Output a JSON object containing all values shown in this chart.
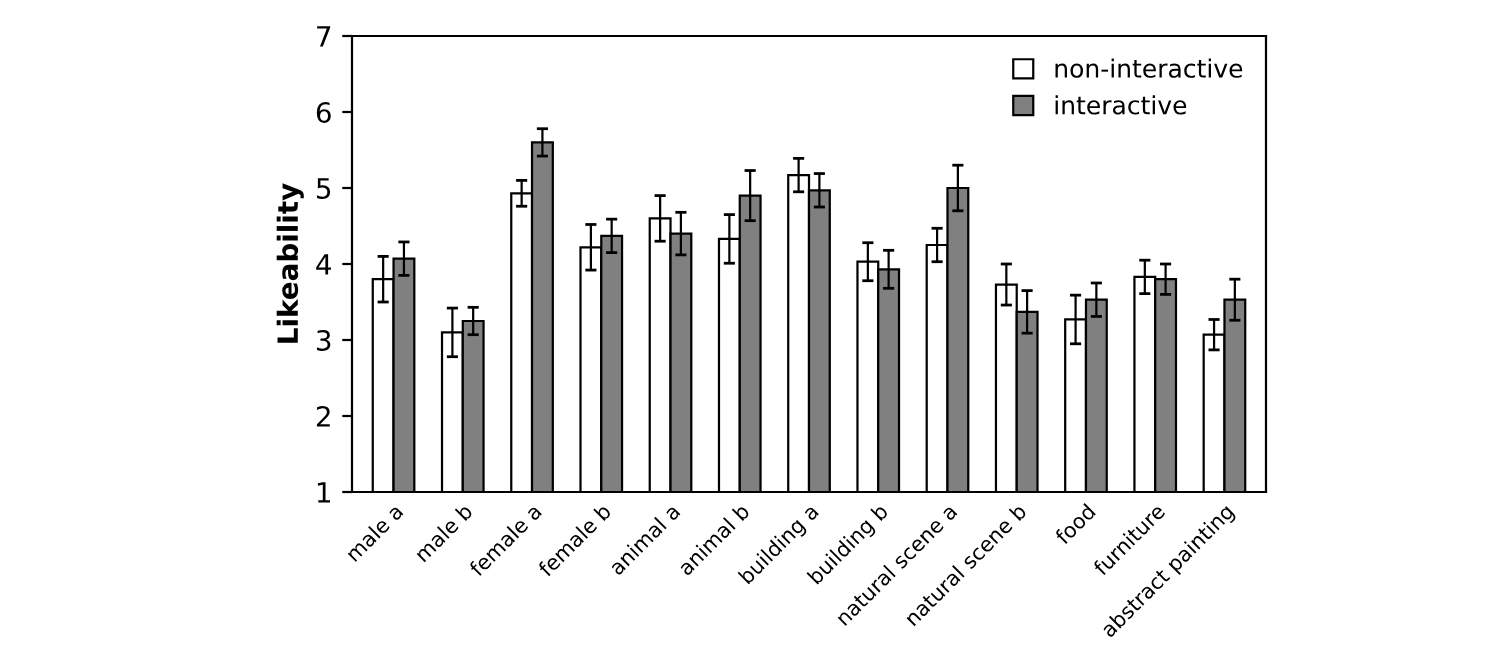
{
  "chart_data": {
    "type": "bar",
    "ylabel": "Likeability",
    "categories": [
      "male a",
      "male b",
      "female a",
      "female b",
      "animal a",
      "animal b",
      "building a",
      "building b",
      "natural scene a",
      "natural scene b",
      "food",
      "furniture",
      "abstract painting"
    ],
    "series": [
      {
        "name": "non-interactive",
        "color": "#ffffff",
        "values": [
          3.8,
          3.1,
          4.93,
          4.22,
          4.6,
          4.33,
          5.17,
          4.03,
          4.25,
          3.73,
          3.27,
          3.83,
          3.07
        ],
        "errors": [
          0.3,
          0.32,
          0.17,
          0.3,
          0.3,
          0.32,
          0.22,
          0.25,
          0.22,
          0.27,
          0.32,
          0.22,
          0.2
        ]
      },
      {
        "name": "interactive",
        "color": "#808080",
        "values": [
          4.07,
          3.25,
          5.6,
          4.37,
          4.4,
          4.9,
          4.97,
          3.93,
          5.0,
          3.37,
          3.53,
          3.8,
          3.53
        ],
        "errors": [
          0.22,
          0.18,
          0.18,
          0.22,
          0.28,
          0.33,
          0.22,
          0.25,
          0.3,
          0.28,
          0.22,
          0.2,
          0.27
        ]
      }
    ],
    "ylim": [
      1,
      7
    ],
    "yticks": [
      1,
      2,
      3,
      4,
      5,
      6,
      7
    ],
    "grid": false,
    "legend": "top right"
  }
}
